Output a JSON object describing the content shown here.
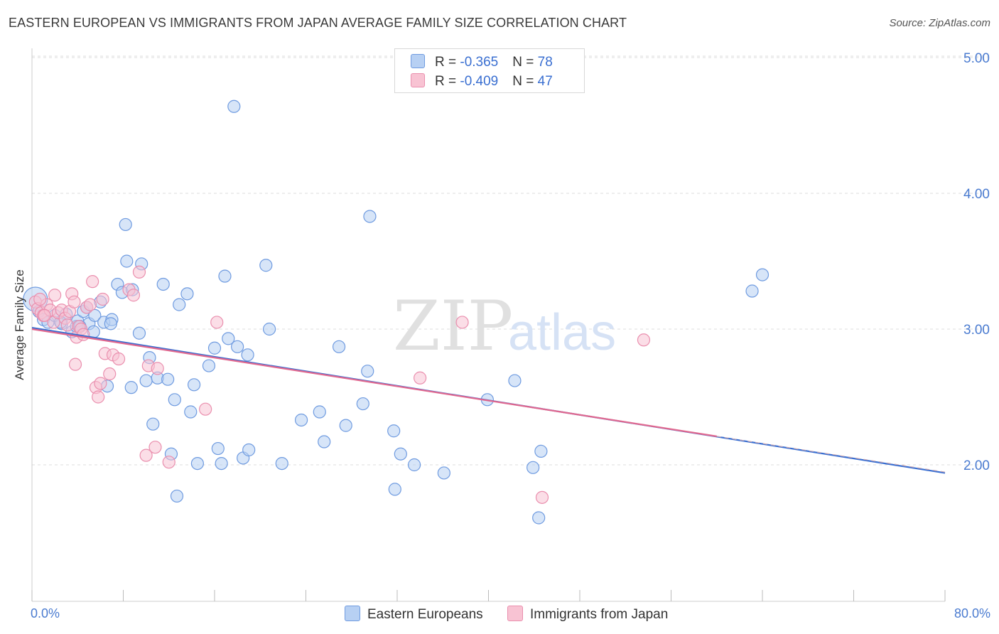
{
  "header": {
    "title": "EASTERN EUROPEAN VS IMMIGRANTS FROM JAPAN AVERAGE FAMILY SIZE CORRELATION CHART",
    "source": "Source: ZipAtlas.com"
  },
  "watermark": {
    "zip": "ZIP",
    "atlas": "atlas"
  },
  "legend": {
    "rows": [
      {
        "r_label": "R = ",
        "r_value": "-0.365",
        "n_label": "N = ",
        "n_value": "78"
      },
      {
        "r_label": "R = ",
        "r_value": "-0.409",
        "n_label": "N = ",
        "n_value": "47"
      }
    ]
  },
  "bottom_legend": {
    "series1": "Eastern Europeans",
    "series2": "Immigrants from Japan"
  },
  "colors": {
    "blue_fill": "#b7d0f3",
    "blue_stroke": "#6f9be0",
    "blue_line": "#3a6fd1",
    "pink_fill": "#f8c3d3",
    "pink_stroke": "#ea8fae",
    "pink_line": "#e0688f",
    "grid": "#dddddd",
    "tick_text": "#4a7bd0"
  },
  "chart_data": {
    "type": "scatter",
    "title": "EASTERN EUROPEAN VS IMMIGRANTS FROM JAPAN AVERAGE FAMILY SIZE CORRELATION CHART",
    "xlabel": "",
    "ylabel": "Average Family Size",
    "xlim": [
      0,
      80
    ],
    "ylim": [
      1.0,
      5.2
    ],
    "x_tick_labels": [
      "0.0%",
      "80.0%"
    ],
    "y_ticks": [
      2.0,
      3.0,
      4.0,
      5.0
    ],
    "y_tick_labels": [
      "2.00",
      "3.00",
      "4.00",
      "5.00"
    ],
    "grid": true,
    "legend_position": "top-center",
    "series": [
      {
        "name": "Eastern Europeans",
        "R": -0.365,
        "N": 78,
        "trend": {
          "x": [
            0,
            80
          ],
          "y": [
            3.01,
            1.94
          ]
        },
        "points": [
          [
            0.3,
            3.22
          ],
          [
            0.6,
            3.13
          ],
          [
            1.0,
            3.07
          ],
          [
            1.4,
            3.05
          ],
          [
            2.0,
            3.1
          ],
          [
            2.6,
            3.04
          ],
          [
            3.0,
            3.11
          ],
          [
            3.5,
            2.98
          ],
          [
            3.9,
            3.02
          ],
          [
            4.0,
            3.06
          ],
          [
            4.5,
            3.13
          ],
          [
            4.8,
            3.16
          ],
          [
            5.0,
            3.04
          ],
          [
            5.5,
            3.1
          ],
          [
            6.0,
            3.2
          ],
          [
            6.3,
            3.05
          ],
          [
            6.6,
            2.58
          ],
          [
            7.0,
            3.07
          ],
          [
            5.4,
            2.98
          ],
          [
            7.5,
            3.33
          ],
          [
            7.9,
            3.27
          ],
          [
            8.3,
            3.5
          ],
          [
            8.8,
            3.29
          ],
          [
            9.4,
            2.97
          ],
          [
            9.6,
            3.48
          ],
          [
            10.0,
            2.62
          ],
          [
            10.3,
            2.79
          ],
          [
            8.7,
            2.57
          ],
          [
            10.6,
            2.3
          ],
          [
            11.0,
            2.64
          ],
          [
            11.5,
            3.33
          ],
          [
            11.9,
            2.63
          ],
          [
            12.2,
            2.08
          ],
          [
            12.5,
            2.48
          ],
          [
            12.7,
            1.77
          ],
          [
            12.9,
            3.18
          ],
          [
            13.6,
            3.26
          ],
          [
            13.9,
            2.39
          ],
          [
            14.2,
            2.59
          ],
          [
            14.5,
            2.01
          ],
          [
            15.5,
            2.73
          ],
          [
            16.0,
            2.86
          ],
          [
            16.3,
            2.12
          ],
          [
            16.6,
            2.01
          ],
          [
            16.9,
            3.39
          ],
          [
            17.2,
            2.93
          ],
          [
            18.0,
            2.87
          ],
          [
            18.5,
            2.05
          ],
          [
            18.9,
            2.81
          ],
          [
            19.0,
            2.11
          ],
          [
            20.5,
            3.47
          ],
          [
            20.8,
            3.0
          ],
          [
            21.9,
            2.01
          ],
          [
            23.6,
            2.33
          ],
          [
            25.2,
            2.39
          ],
          [
            25.6,
            2.17
          ],
          [
            26.9,
            2.87
          ],
          [
            27.5,
            2.29
          ],
          [
            29.0,
            2.45
          ],
          [
            29.4,
            2.69
          ],
          [
            29.6,
            3.83
          ],
          [
            31.7,
            2.25
          ],
          [
            31.8,
            1.82
          ],
          [
            32.3,
            2.08
          ],
          [
            33.5,
            2.0
          ],
          [
            36.1,
            1.94
          ],
          [
            39.9,
            2.48
          ],
          [
            42.3,
            2.62
          ],
          [
            43.9,
            1.98
          ],
          [
            44.4,
            1.61
          ],
          [
            44.6,
            2.1
          ],
          [
            63.1,
            3.28
          ],
          [
            64.0,
            3.4
          ],
          [
            17.7,
            4.64
          ],
          [
            8.2,
            3.77
          ],
          [
            2.5,
            3.05
          ],
          [
            4.2,
            3.02
          ],
          [
            6.9,
            3.04
          ]
        ]
      },
      {
        "name": "Immigrants from Japan",
        "R": -0.409,
        "N": 47,
        "trend": {
          "x": [
            0,
            60
          ],
          "y": [
            3.0,
            2.21
          ]
        },
        "points": [
          [
            0.3,
            3.2
          ],
          [
            0.5,
            3.15
          ],
          [
            0.8,
            3.12
          ],
          [
            1.0,
            3.1
          ],
          [
            1.3,
            3.18
          ],
          [
            1.6,
            3.14
          ],
          [
            1.9,
            3.05
          ],
          [
            2.0,
            3.25
          ],
          [
            2.3,
            3.12
          ],
          [
            2.6,
            3.14
          ],
          [
            2.9,
            3.08
          ],
          [
            3.1,
            3.03
          ],
          [
            3.3,
            3.13
          ],
          [
            3.5,
            3.26
          ],
          [
            3.7,
            3.2
          ],
          [
            3.8,
            2.74
          ],
          [
            3.9,
            2.94
          ],
          [
            4.1,
            3.02
          ],
          [
            4.3,
            3.0
          ],
          [
            4.5,
            2.96
          ],
          [
            4.8,
            3.16
          ],
          [
            5.1,
            3.18
          ],
          [
            5.3,
            3.35
          ],
          [
            5.6,
            2.57
          ],
          [
            5.8,
            2.5
          ],
          [
            6.0,
            2.6
          ],
          [
            6.2,
            3.22
          ],
          [
            6.4,
            2.82
          ],
          [
            6.8,
            2.67
          ],
          [
            7.1,
            2.81
          ],
          [
            7.6,
            2.78
          ],
          [
            8.5,
            3.29
          ],
          [
            8.9,
            3.25
          ],
          [
            9.4,
            3.42
          ],
          [
            10.0,
            2.07
          ],
          [
            10.2,
            2.73
          ],
          [
            10.8,
            2.13
          ],
          [
            11.0,
            2.71
          ],
          [
            12.0,
            2.02
          ],
          [
            15.2,
            2.41
          ],
          [
            16.2,
            3.05
          ],
          [
            34.0,
            2.64
          ],
          [
            37.7,
            3.05
          ],
          [
            44.7,
            1.76
          ],
          [
            53.6,
            2.92
          ],
          [
            0.7,
            3.22
          ],
          [
            1.1,
            3.1
          ]
        ]
      }
    ]
  }
}
